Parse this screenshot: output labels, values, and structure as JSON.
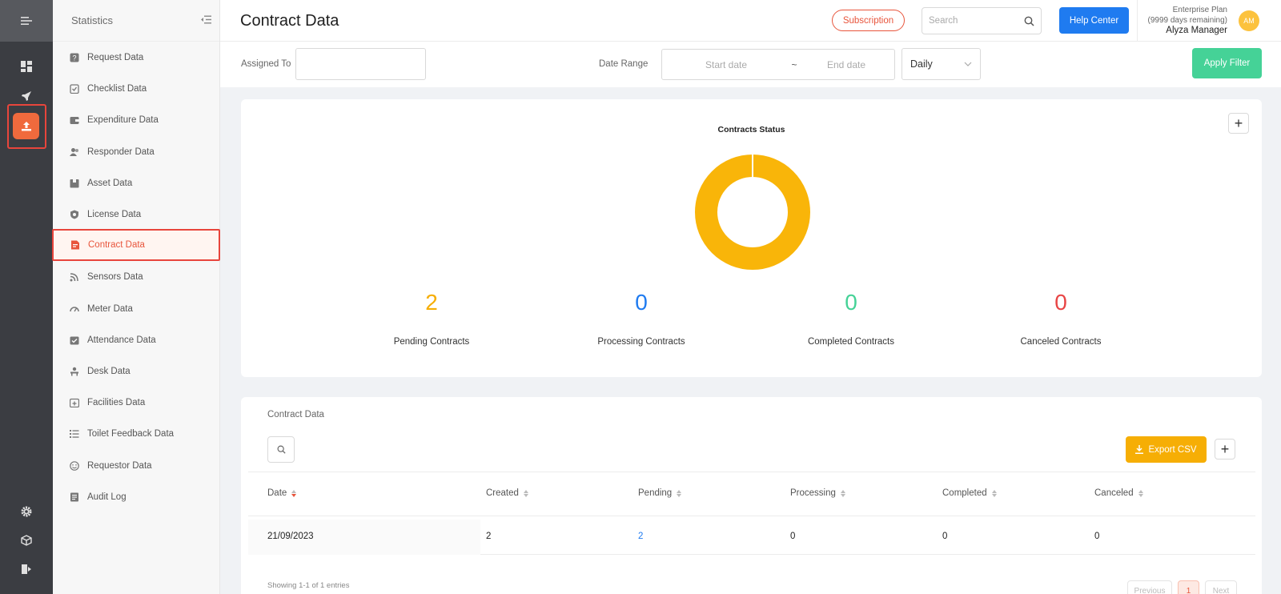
{
  "header": {
    "title": "Contract Data",
    "subscription_label": "Subscription",
    "search_placeholder": "Search",
    "help_label": "Help Center",
    "plan_name": "Enterprise Plan",
    "plan_remaining": "(9999 days remaining)",
    "user_name": "Alyza Manager",
    "avatar_initials": "AM"
  },
  "sidebar": {
    "title": "Statistics",
    "items": [
      {
        "label": "Request Data",
        "icon": "question-icon"
      },
      {
        "label": "Checklist Data",
        "icon": "checklist-icon"
      },
      {
        "label": "Expenditure Data",
        "icon": "wallet-icon"
      },
      {
        "label": "Responder Data",
        "icon": "users-icon"
      },
      {
        "label": "Asset Data",
        "icon": "box-icon"
      },
      {
        "label": "License Data",
        "icon": "shield-icon"
      },
      {
        "label": "Contract Data",
        "icon": "contract-icon",
        "active": true
      },
      {
        "label": "Sensors Data",
        "icon": "signal-icon"
      },
      {
        "label": "Meter Data",
        "icon": "gauge-icon"
      },
      {
        "label": "Attendance Data",
        "icon": "calendar-check-icon"
      },
      {
        "label": "Desk Data",
        "icon": "desk-icon"
      },
      {
        "label": "Facilities Data",
        "icon": "calendar-plus-icon"
      },
      {
        "label": "Toilet Feedback Data",
        "icon": "list-icon"
      },
      {
        "label": "Requestor Data",
        "icon": "smile-icon"
      },
      {
        "label": "Audit Log",
        "icon": "log-icon"
      }
    ]
  },
  "filter": {
    "assigned_label": "Assigned To",
    "date_range_label": "Date Range",
    "start_placeholder": "Start date",
    "separator": "~",
    "end_placeholder": "End date",
    "interval": "Daily",
    "apply_label": "Apply Filter"
  },
  "status_card": {
    "chart_title": "Contracts Status",
    "stats": [
      {
        "value": "2",
        "label": "Pending Contracts",
        "color": "#f6ae05"
      },
      {
        "value": "0",
        "label": "Processing Contracts",
        "color": "#1f7bf0"
      },
      {
        "value": "0",
        "label": "Completed Contracts",
        "color": "#45d297"
      },
      {
        "value": "0",
        "label": "Canceled Contracts",
        "color": "#e84545"
      }
    ]
  },
  "chart_data": {
    "type": "pie",
    "donut": true,
    "title": "Contracts Status",
    "slices": [
      {
        "name": "Pending Contracts",
        "value": 2,
        "color": "#f9b509"
      },
      {
        "name": "Processing Contracts",
        "value": 0,
        "color": "#1f7bf0"
      },
      {
        "name": "Completed Contracts",
        "value": 0,
        "color": "#45d297"
      },
      {
        "name": "Canceled Contracts",
        "value": 0,
        "color": "#e84545"
      }
    ]
  },
  "table": {
    "title": "Contract Data",
    "export_label": "Export CSV",
    "columns": [
      "Date",
      "Created",
      "Pending",
      "Processing",
      "Completed",
      "Canceled"
    ],
    "rows": [
      [
        "21/09/2023",
        "2",
        "2",
        "0",
        "0",
        "0"
      ]
    ],
    "showing": "Showing 1-1 of 1 entries",
    "prev_label": "Previous",
    "page": "1",
    "next_label": "Next"
  }
}
